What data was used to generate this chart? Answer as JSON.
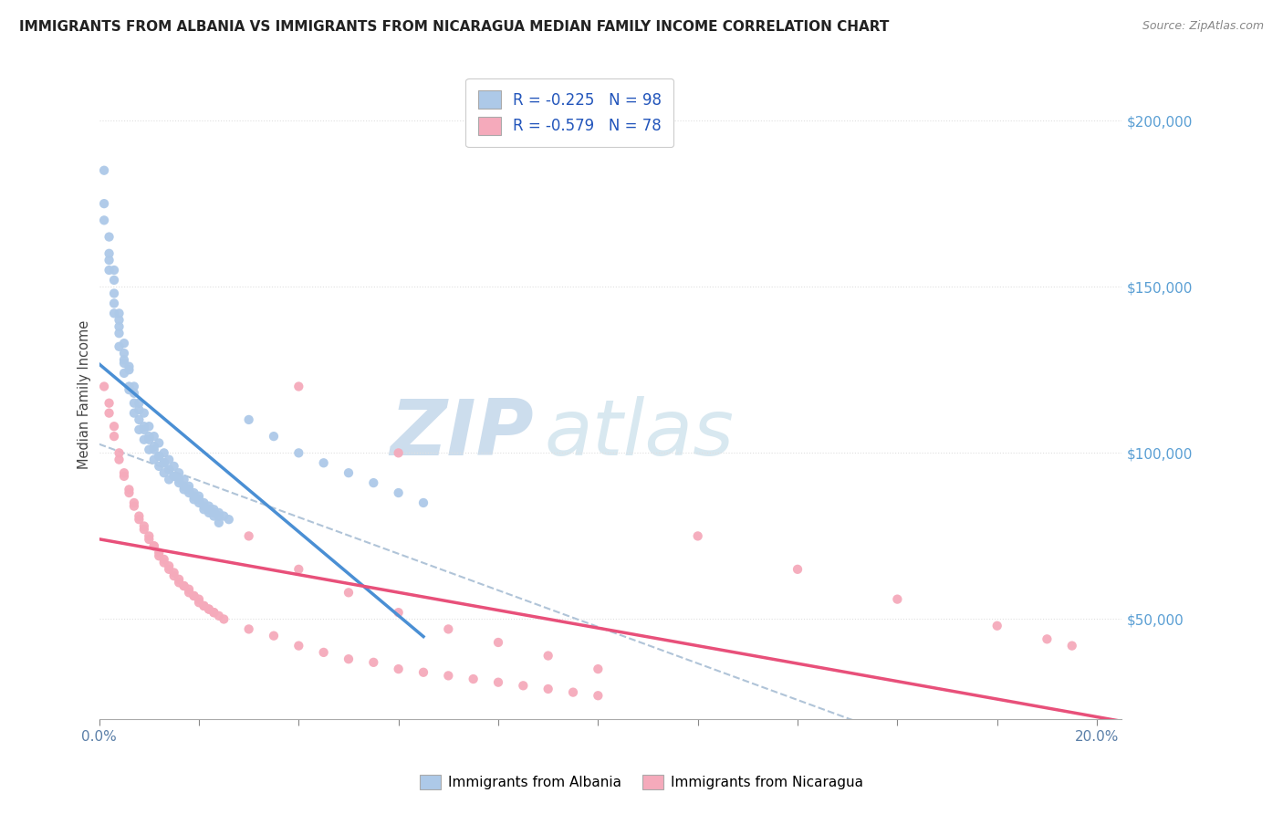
{
  "title": "IMMIGRANTS FROM ALBANIA VS IMMIGRANTS FROM NICARAGUA MEDIAN FAMILY INCOME CORRELATION CHART",
  "source": "Source: ZipAtlas.com",
  "ylabel": "Median Family Income",
  "legend_albania": "R = -0.225   N = 98",
  "legend_nicaragua": "R = -0.579   N = 78",
  "legend_label_albania": "Immigrants from Albania",
  "legend_label_nicaragua": "Immigrants from Nicaragua",
  "xlim": [
    0.0,
    0.205
  ],
  "ylim": [
    20000,
    215000
  ],
  "yticks": [
    50000,
    100000,
    150000,
    200000
  ],
  "ytick_labels": [
    "$50,000",
    "$100,000",
    "$150,000",
    "$200,000"
  ],
  "albania_color": "#adc9e8",
  "nicaragua_color": "#f5aabb",
  "albania_line_color": "#4a8fd4",
  "nicaragua_line_color": "#e8507a",
  "dashed_line_color": "#b0c4d8",
  "watermark_text": "ZIPatlas",
  "watermark_color": "#ccdded",
  "background_color": "#ffffff",
  "albania_x": [
    0.003,
    0.004,
    0.005,
    0.006,
    0.007,
    0.008,
    0.009,
    0.01,
    0.011,
    0.012,
    0.013,
    0.014,
    0.015,
    0.016,
    0.017,
    0.018,
    0.019,
    0.02,
    0.021,
    0.022,
    0.023,
    0.024,
    0.025,
    0.026,
    0.001,
    0.002,
    0.003,
    0.004,
    0.005,
    0.006,
    0.007,
    0.008,
    0.009,
    0.01,
    0.011,
    0.012,
    0.013,
    0.014,
    0.015,
    0.016,
    0.017,
    0.018,
    0.019,
    0.02,
    0.021,
    0.022,
    0.023,
    0.024,
    0.001,
    0.002,
    0.003,
    0.004,
    0.005,
    0.006,
    0.007,
    0.008,
    0.009,
    0.01,
    0.011,
    0.012,
    0.013,
    0.014,
    0.015,
    0.016,
    0.017,
    0.018,
    0.019,
    0.02,
    0.021,
    0.022,
    0.023,
    0.024,
    0.001,
    0.002,
    0.003,
    0.004,
    0.005,
    0.006,
    0.007,
    0.008,
    0.009,
    0.01,
    0.011,
    0.012,
    0.013,
    0.014,
    0.03,
    0.035,
    0.04,
    0.045,
    0.05,
    0.055,
    0.06,
    0.065,
    0.002,
    0.003,
    0.004,
    0.005
  ],
  "albania_y": [
    155000,
    140000,
    130000,
    125000,
    120000,
    115000,
    112000,
    108000,
    105000,
    103000,
    100000,
    98000,
    96000,
    94000,
    92000,
    90000,
    88000,
    87000,
    85000,
    84000,
    83000,
    82000,
    81000,
    80000,
    170000,
    155000,
    148000,
    138000,
    128000,
    120000,
    115000,
    110000,
    107000,
    104000,
    101000,
    99000,
    97000,
    95000,
    93000,
    92000,
    90000,
    89000,
    87000,
    86000,
    84000,
    83000,
    82000,
    81000,
    185000,
    165000,
    152000,
    142000,
    133000,
    126000,
    118000,
    113000,
    108000,
    105000,
    102000,
    99000,
    97000,
    95000,
    93000,
    91000,
    89000,
    88000,
    86000,
    85000,
    83000,
    82000,
    81000,
    79000,
    175000,
    158000,
    145000,
    136000,
    127000,
    119000,
    112000,
    107000,
    104000,
    101000,
    98000,
    96000,
    94000,
    92000,
    110000,
    105000,
    100000,
    97000,
    94000,
    91000,
    88000,
    85000,
    160000,
    142000,
    132000,
    124000
  ],
  "nicaragua_x": [
    0.001,
    0.002,
    0.003,
    0.004,
    0.005,
    0.006,
    0.007,
    0.008,
    0.009,
    0.01,
    0.011,
    0.012,
    0.013,
    0.014,
    0.015,
    0.016,
    0.017,
    0.018,
    0.019,
    0.02,
    0.021,
    0.022,
    0.023,
    0.024,
    0.025,
    0.03,
    0.035,
    0.04,
    0.045,
    0.05,
    0.055,
    0.06,
    0.065,
    0.07,
    0.075,
    0.08,
    0.085,
    0.09,
    0.095,
    0.1,
    0.002,
    0.003,
    0.004,
    0.005,
    0.006,
    0.007,
    0.008,
    0.009,
    0.01,
    0.011,
    0.012,
    0.013,
    0.014,
    0.015,
    0.016,
    0.017,
    0.018,
    0.019,
    0.02,
    0.021,
    0.022,
    0.023,
    0.03,
    0.04,
    0.05,
    0.06,
    0.07,
    0.08,
    0.09,
    0.1,
    0.12,
    0.14,
    0.16,
    0.18,
    0.19,
    0.195,
    0.04,
    0.06
  ],
  "nicaragua_y": [
    120000,
    112000,
    105000,
    98000,
    93000,
    88000,
    84000,
    80000,
    77000,
    74000,
    72000,
    69000,
    67000,
    65000,
    63000,
    61000,
    60000,
    58000,
    57000,
    55000,
    54000,
    53000,
    52000,
    51000,
    50000,
    47000,
    45000,
    42000,
    40000,
    38000,
    37000,
    35000,
    34000,
    33000,
    32000,
    31000,
    30000,
    29000,
    28000,
    27000,
    115000,
    108000,
    100000,
    94000,
    89000,
    85000,
    81000,
    78000,
    75000,
    72000,
    70000,
    68000,
    66000,
    64000,
    62000,
    60000,
    59000,
    57000,
    56000,
    54000,
    53000,
    52000,
    75000,
    65000,
    58000,
    52000,
    47000,
    43000,
    39000,
    35000,
    75000,
    65000,
    56000,
    48000,
    44000,
    42000,
    120000,
    100000
  ]
}
